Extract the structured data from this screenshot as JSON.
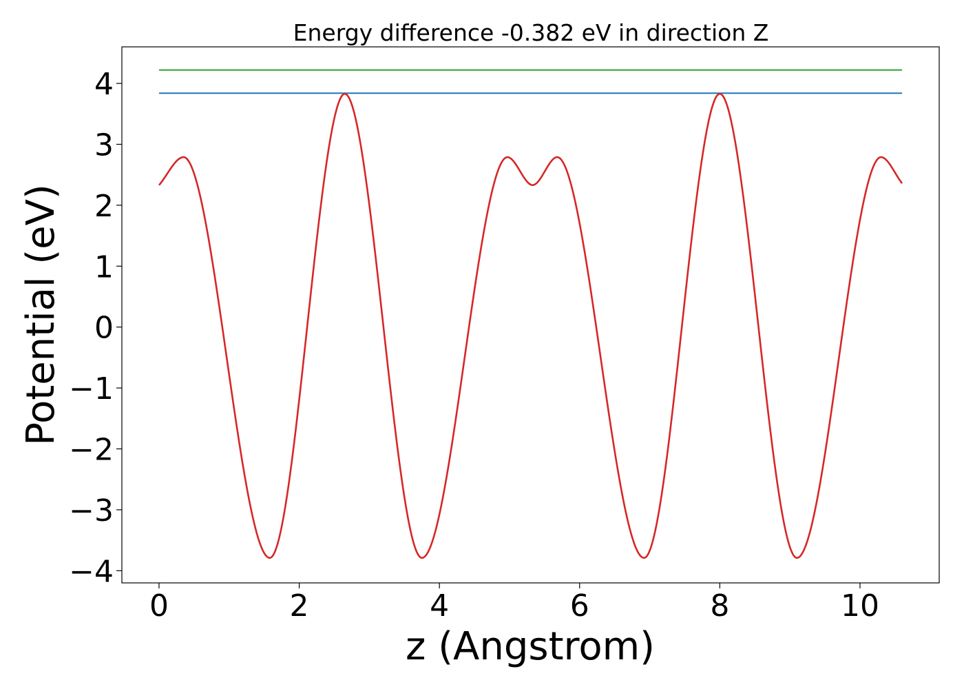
{
  "chart_data": {
    "type": "line",
    "title": "Energy difference -0.382 eV in direction Z",
    "xlabel": "z (Angstrom)",
    "ylabel": "Potential (eV)",
    "xlim": [
      -0.53,
      11.13
    ],
    "ylim": [
      -4.2,
      4.6
    ],
    "xticks": [
      0,
      2,
      4,
      6,
      8,
      10
    ],
    "xtick_labels": [
      "0",
      "2",
      "4",
      "6",
      "8",
      "10"
    ],
    "yticks": [
      -4,
      -3,
      -2,
      -1,
      0,
      1,
      2,
      3,
      4
    ],
    "ytick_labels": [
      "−4",
      "−3",
      "−2",
      "−1",
      "0",
      "1",
      "2",
      "3",
      "4"
    ],
    "grid": false,
    "series": [
      {
        "color": "#1f77b4",
        "style": "hline",
        "x": [
          0,
          10.6
        ],
        "y": [
          3.84,
          3.84
        ]
      },
      {
        "color": "#2ca02c",
        "style": "hline",
        "x": [
          0,
          10.6
        ],
        "y": [
          4.22,
          4.22
        ]
      },
      {
        "color": "#d62728",
        "style": "curve",
        "x": [
          0,
          0.35,
          1.58,
          2.65,
          3.75,
          4.97,
          5.33,
          5.68,
          6.92,
          8.0,
          9.1,
          10.3,
          10.6
        ],
        "y": [
          2.33,
          2.79,
          -3.79,
          3.83,
          -3.79,
          2.79,
          2.33,
          2.79,
          -3.79,
          3.83,
          -3.79,
          2.79,
          2.36
        ]
      }
    ]
  }
}
